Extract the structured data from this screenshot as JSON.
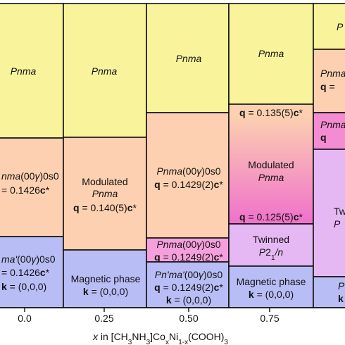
{
  "columns": [
    {
      "cells": [
        {
          "color": "#f9f49c",
          "lines": [
            [
              [
                "Pnma",
                "i"
              ]
            ]
          ]
        },
        {
          "color": "#fcd0b0",
          "lines": [
            [
              [
                "nma",
                "i"
              ],
              [
                "(00",
                ""
              ],
              [
                "γ",
                "i"
              ],
              [
                ")0s0",
                ""
              ]
            ],
            [
              [
                "= 0.1426",
                ""
              ],
              [
                "c",
                "b"
              ],
              [
                "*",
                ""
              ]
            ]
          ]
        },
        {
          "color": "#b9bdf5",
          "lines": [
            [
              [
                "ma'",
                "i"
              ],
              [
                "(00",
                ""
              ],
              [
                "γ",
                "i"
              ],
              [
                ")0s0",
                ""
              ]
            ],
            [
              [
                "= 0.1426",
                ""
              ],
              [
                "c",
                "b"
              ],
              [
                "*",
                ""
              ]
            ],
            [
              [
                "k",
                "b"
              ],
              [
                " = (0,0,0)",
                ""
              ]
            ]
          ]
        }
      ]
    },
    {
      "cells": [
        {
          "color": "#f9f49c",
          "lines": [
            [
              [
                "Pnma",
                "i"
              ]
            ]
          ]
        },
        {
          "color": "#fcd0b0",
          "lines": [
            [
              [
                "Modulated",
                ""
              ]
            ],
            [
              [
                "Pnma",
                "i"
              ]
            ],
            [
              [
                "q",
                "b"
              ],
              [
                " = 0.140(5)",
                ""
              ],
              [
                "c",
                "b"
              ],
              [
                "*",
                ""
              ]
            ]
          ]
        },
        {
          "color": "#b9bdf5",
          "lines": [
            [
              [
                "Magnetic phase",
                ""
              ]
            ],
            [
              [
                "k",
                "b"
              ],
              [
                " = (0,0,0)",
                ""
              ]
            ]
          ]
        }
      ]
    },
    {
      "cells": [
        {
          "color": "#f9f49c",
          "lines": [
            [
              [
                "Pnma",
                "i"
              ]
            ]
          ]
        },
        {
          "color": "#fcd0b0",
          "lines": [
            [
              [
                "Pnma",
                "i"
              ],
              [
                "(00",
                ""
              ],
              [
                "γ",
                "i"
              ],
              [
                ")0s0",
                ""
              ]
            ],
            [
              [
                "q",
                "b"
              ],
              [
                " = 0.1429(2)",
                ""
              ],
              [
                "c",
                "b"
              ],
              [
                "*",
                ""
              ]
            ]
          ]
        },
        {
          "color": "#f5a0dc",
          "lines": [
            [
              [
                "Pnma",
                "i"
              ],
              [
                "(00",
                ""
              ],
              [
                "γ",
                "i"
              ],
              [
                ")0s0",
                ""
              ]
            ],
            [
              [
                "q",
                "b"
              ],
              [
                " = 0.1249(2)",
                ""
              ],
              [
                "c",
                "b"
              ],
              [
                "*",
                ""
              ]
            ]
          ]
        },
        {
          "color": "#b9bdf5",
          "lines": [
            [
              [
                "Pn'ma'",
                "i"
              ],
              [
                "(00",
                ""
              ],
              [
                "γ",
                "i"
              ],
              [
                ")0s0",
                ""
              ]
            ],
            [
              [
                "q",
                "b"
              ],
              [
                " = 0.1249(2)",
                ""
              ],
              [
                "c",
                "b"
              ],
              [
                "*",
                ""
              ]
            ],
            [
              [
                "k",
                "b"
              ],
              [
                " = (0,0,0)",
                ""
              ]
            ]
          ]
        }
      ]
    },
    {
      "cells": [
        {
          "color": "#f9f49c",
          "lines": [
            [
              [
                "Pnma",
                "i"
              ]
            ]
          ]
        },
        {
          "color": [
            "#fcd0b0",
            "#f070cc"
          ],
          "lines": [
            [
              [
                "q",
                "b"
              ],
              [
                " = 0.135(5)",
                ""
              ],
              [
                "c",
                "b"
              ],
              [
                "*",
                ""
              ]
            ],
            [
              [
                "Modulated",
                ""
              ]
            ],
            [
              [
                "Pnma",
                "i"
              ]
            ],
            [
              [
                "q",
                "b"
              ],
              [
                " = 0.125(5)",
                ""
              ],
              [
                "c",
                "b"
              ],
              [
                "*",
                ""
              ]
            ]
          ]
        },
        {
          "color": "#e6b8f3",
          "lines": [
            [
              [
                "Twinned",
                ""
              ]
            ],
            [
              [
                "P",
                "i"
              ],
              [
                "2",
                ""
              ],
              [
                "1",
                "sub"
              ],
              [
                "/n",
                "i"
              ]
            ]
          ]
        },
        {
          "color": "#b9bdf5",
          "lines": [
            [
              [
                "Magnetic phase",
                ""
              ]
            ],
            [
              [
                "k",
                "b"
              ],
              [
                " = (0,0,0)",
                ""
              ]
            ]
          ]
        }
      ]
    },
    {
      "cells": [
        {
          "color": "#f9f49c",
          "lines": [
            [
              [
                "P",
                "i"
              ]
            ]
          ]
        },
        {
          "color": "#fcd0b0",
          "lines": [
            [
              [
                "Pnma",
                "i"
              ]
            ],
            [
              [
                "q",
                "b"
              ],
              [
                " =",
                ""
              ]
            ]
          ]
        },
        {
          "color": "#f38cd2",
          "lines": [
            [
              [
                "Pnma",
                "i"
              ]
            ],
            [
              [
                "q",
                "b"
              ]
            ]
          ]
        },
        {
          "color": "#e6b8f3",
          "lines": [
            [
              [
                "Tw",
                ""
              ]
            ],
            [
              [
                "P",
                "i"
              ]
            ]
          ]
        },
        {
          "color": "#b9bdf5",
          "lines": [
            [
              [
                "P",
                "i"
              ]
            ],
            [
              [
                "k",
                "b"
              ],
              [
                " =",
                ""
              ]
            ]
          ]
        }
      ]
    }
  ],
  "x_ticks": [
    "0.0",
    "0.25",
    "0.50",
    "0.75"
  ],
  "x_label": [
    [
      "x",
      "i"
    ],
    [
      " in [CH",
      ""
    ],
    [
      "3",
      "sub"
    ],
    [
      "NH",
      ""
    ],
    [
      "3",
      "sub"
    ],
    [
      "]Co",
      ""
    ],
    [
      "x",
      "sub"
    ],
    [
      "Ni",
      ""
    ],
    [
      "1-x",
      "sub"
    ],
    [
      "(COOH)",
      ""
    ],
    [
      "3",
      "sub"
    ]
  ]
}
